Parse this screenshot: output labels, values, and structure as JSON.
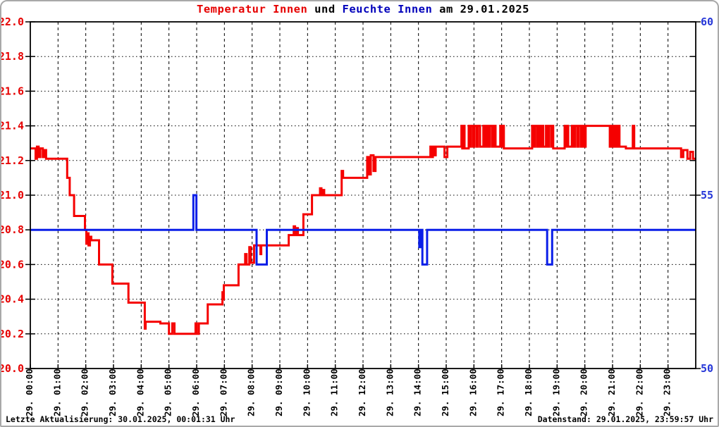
{
  "title": {
    "temperature": "Temperatur Innen",
    "connector": " und ",
    "humidity": "Feuchte Innen",
    "date_suffix": " am 29.01.2025"
  },
  "footer": {
    "last_update": "Letzte Aktualisierung: 30.01.2025, 00:01:31 Uhr",
    "data_state": "Datenstand: 29.01.2025, 23:59:57 Uhr"
  },
  "colors": {
    "temperature_line": "#f50000",
    "temperature_text": "#e60000",
    "humidity_line": "#0a1ee8",
    "humidity_text": "#0000bb",
    "humidity_axis_text": "#2637d8",
    "grid": "#000000",
    "frame": "#000000",
    "window_border": "#a9a9a9",
    "background": "#ffffff"
  },
  "chart_data": {
    "type": "line",
    "title": "Temperatur Innen und Feuchte Innen am 29.01.2025",
    "grid": true,
    "legend_position": "none",
    "x_axis": {
      "range": [
        0,
        24
      ],
      "tick_labels": [
        "29. 00:00",
        "29. 01:00",
        "29. 02:00",
        "29. 03:00",
        "29. 04:00",
        "29. 05:00",
        "29. 06:00",
        "29. 07:00",
        "29. 08:00",
        "29. 09:00",
        "29. 10:00",
        "29. 11:00",
        "29. 12:00",
        "29. 13:00",
        "29. 14:00",
        "29. 15:00",
        "29. 16:00",
        "29. 17:00",
        "29. 18:00",
        "29. 19:00",
        "29. 20:00",
        "29. 21:00",
        "29. 22:00",
        "29. 23:00"
      ]
    },
    "y_left": {
      "name": "Temperatur Innen",
      "unit": "°C",
      "range": [
        20.0,
        22.0
      ],
      "tick_step": 0.2,
      "tick_labels": [
        "22.0",
        "21.8",
        "21.6",
        "21.4",
        "21.2",
        "21.0",
        "20.8",
        "20.6",
        "20.4",
        "20.2",
        "20.0"
      ]
    },
    "y_right": {
      "name": "Feuchte Innen",
      "unit": "%",
      "range": [
        50,
        60
      ],
      "minor_tick_step": 1,
      "labeled_ticks": [
        60,
        55,
        50
      ],
      "tick_labels": [
        "60",
        "55",
        "50"
      ]
    },
    "series": [
      {
        "name": "Temperatur Innen",
        "axis": "left",
        "color_key": "temperature_line",
        "points": [
          [
            0,
            21.27
          ],
          [
            0.19,
            21.27
          ],
          [
            0.19,
            21.21
          ],
          [
            0.24,
            21.21
          ],
          [
            0.24,
            21.28
          ],
          [
            0.3,
            21.28
          ],
          [
            0.3,
            21.22
          ],
          [
            0.36,
            21.22
          ],
          [
            0.36,
            21.27
          ],
          [
            0.45,
            21.27
          ],
          [
            0.45,
            21.22
          ],
          [
            0.52,
            21.22
          ],
          [
            0.52,
            21.26
          ],
          [
            0.57,
            21.26
          ],
          [
            0.57,
            21.21
          ],
          [
            1.33,
            21.21
          ],
          [
            1.33,
            21.1
          ],
          [
            1.42,
            21.1
          ],
          [
            1.42,
            21.0
          ],
          [
            1.58,
            21.0
          ],
          [
            1.58,
            20.88
          ],
          [
            1.97,
            20.88
          ],
          [
            1.97,
            20.8
          ],
          [
            2.02,
            20.8
          ],
          [
            2.02,
            20.72
          ],
          [
            2.06,
            20.72
          ],
          [
            2.06,
            20.78
          ],
          [
            2.1,
            20.78
          ],
          [
            2.1,
            20.71
          ],
          [
            2.15,
            20.71
          ],
          [
            2.15,
            20.76
          ],
          [
            2.2,
            20.76
          ],
          [
            2.2,
            20.74
          ],
          [
            2.48,
            20.74
          ],
          [
            2.48,
            20.6
          ],
          [
            2.96,
            20.6
          ],
          [
            2.96,
            20.49
          ],
          [
            3.54,
            20.49
          ],
          [
            3.54,
            20.38
          ],
          [
            4.13,
            20.38
          ],
          [
            4.13,
            20.23
          ],
          [
            4.16,
            20.23
          ],
          [
            4.16,
            20.27
          ],
          [
            4.69,
            20.27
          ],
          [
            4.69,
            20.26
          ],
          [
            5.0,
            20.26
          ],
          [
            5.0,
            20.2
          ],
          [
            5.12,
            20.2
          ],
          [
            5.12,
            20.26
          ],
          [
            5.2,
            20.26
          ],
          [
            5.2,
            20.2
          ],
          [
            5.96,
            20.2
          ],
          [
            5.96,
            20.26
          ],
          [
            6.0,
            20.26
          ],
          [
            6.0,
            20.2
          ],
          [
            6.08,
            20.2
          ],
          [
            6.08,
            20.26
          ],
          [
            6.4,
            20.26
          ],
          [
            6.4,
            20.37
          ],
          [
            6.93,
            20.37
          ],
          [
            6.93,
            20.44
          ],
          [
            6.96,
            20.44
          ],
          [
            6.96,
            20.4
          ],
          [
            6.98,
            20.4
          ],
          [
            6.98,
            20.48
          ],
          [
            7.51,
            20.48
          ],
          [
            7.51,
            20.6
          ],
          [
            7.75,
            20.6
          ],
          [
            7.75,
            20.66
          ],
          [
            7.8,
            20.66
          ],
          [
            7.8,
            20.6
          ],
          [
            7.9,
            20.6
          ],
          [
            7.9,
            20.7
          ],
          [
            7.95,
            20.7
          ],
          [
            7.95,
            20.61
          ],
          [
            8.07,
            20.61
          ],
          [
            8.07,
            20.71
          ],
          [
            8.3,
            20.71
          ],
          [
            8.3,
            20.66
          ],
          [
            8.33,
            20.66
          ],
          [
            8.33,
            20.71
          ],
          [
            9.32,
            20.71
          ],
          [
            9.32,
            20.77
          ],
          [
            9.5,
            20.77
          ],
          [
            9.5,
            20.82
          ],
          [
            9.55,
            20.82
          ],
          [
            9.55,
            20.77
          ],
          [
            9.6,
            20.77
          ],
          [
            9.6,
            20.81
          ],
          [
            9.65,
            20.81
          ],
          [
            9.65,
            20.77
          ],
          [
            9.85,
            20.77
          ],
          [
            9.85,
            20.89
          ],
          [
            10.16,
            20.89
          ],
          [
            10.16,
            21.0
          ],
          [
            10.45,
            21.0
          ],
          [
            10.45,
            21.04
          ],
          [
            10.5,
            21.04
          ],
          [
            10.5,
            21.0
          ],
          [
            10.55,
            21.0
          ],
          [
            10.55,
            21.03
          ],
          [
            10.6,
            21.03
          ],
          [
            10.6,
            21.0
          ],
          [
            11.23,
            21.0
          ],
          [
            11.23,
            21.14
          ],
          [
            11.28,
            21.14
          ],
          [
            11.28,
            21.1
          ],
          [
            12.15,
            21.1
          ],
          [
            12.15,
            21.22
          ],
          [
            12.22,
            21.22
          ],
          [
            12.22,
            21.12
          ],
          [
            12.28,
            21.12
          ],
          [
            12.28,
            21.23
          ],
          [
            12.38,
            21.23
          ],
          [
            12.38,
            21.14
          ],
          [
            12.45,
            21.14
          ],
          [
            12.45,
            21.22
          ],
          [
            14.43,
            21.22
          ],
          [
            14.43,
            21.28
          ],
          [
            14.48,
            21.28
          ],
          [
            14.48,
            21.22
          ],
          [
            14.52,
            21.22
          ],
          [
            14.52,
            21.28
          ],
          [
            14.58,
            21.28
          ],
          [
            14.58,
            21.23
          ],
          [
            14.62,
            21.23
          ],
          [
            14.62,
            21.28
          ],
          [
            14.94,
            21.28
          ],
          [
            14.94,
            21.22
          ],
          [
            15.04,
            21.22
          ],
          [
            15.04,
            21.28
          ],
          [
            15.55,
            21.28
          ],
          [
            15.55,
            21.4
          ],
          [
            15.58,
            21.4
          ],
          [
            15.58,
            21.27
          ],
          [
            15.61,
            21.27
          ],
          [
            15.61,
            21.4
          ],
          [
            15.66,
            21.4
          ],
          [
            15.66,
            21.27
          ],
          [
            15.7,
            21.27
          ],
          [
            15.81,
            21.27
          ],
          [
            15.81,
            21.4
          ],
          [
            15.86,
            21.4
          ],
          [
            15.86,
            21.28
          ],
          [
            15.9,
            21.28
          ],
          [
            15.9,
            21.4
          ],
          [
            15.98,
            21.4
          ],
          [
            15.98,
            21.28
          ],
          [
            16.02,
            21.28
          ],
          [
            16.02,
            21.4
          ],
          [
            16.1,
            21.4
          ],
          [
            16.1,
            21.28
          ],
          [
            16.14,
            21.28
          ],
          [
            16.14,
            21.4
          ],
          [
            16.22,
            21.4
          ],
          [
            16.22,
            21.28
          ],
          [
            16.27,
            21.28
          ],
          [
            16.34,
            21.28
          ],
          [
            16.34,
            21.4
          ],
          [
            16.4,
            21.4
          ],
          [
            16.4,
            21.28
          ],
          [
            16.45,
            21.28
          ],
          [
            16.45,
            21.4
          ],
          [
            16.52,
            21.4
          ],
          [
            16.52,
            21.28
          ],
          [
            16.58,
            21.28
          ],
          [
            16.58,
            21.4
          ],
          [
            16.66,
            21.4
          ],
          [
            16.66,
            21.28
          ],
          [
            16.72,
            21.28
          ],
          [
            16.72,
            21.4
          ],
          [
            16.78,
            21.4
          ],
          [
            16.78,
            21.28
          ],
          [
            16.83,
            21.28
          ],
          [
            16.95,
            21.28
          ],
          [
            16.95,
            21.4
          ],
          [
            17.0,
            21.4
          ],
          [
            17.0,
            21.28
          ],
          [
            17.04,
            21.28
          ],
          [
            17.04,
            21.4
          ],
          [
            17.08,
            21.4
          ],
          [
            17.08,
            21.27
          ],
          [
            18.1,
            21.27
          ],
          [
            18.1,
            21.4
          ],
          [
            18.16,
            21.4
          ],
          [
            18.16,
            21.28
          ],
          [
            18.2,
            21.28
          ],
          [
            18.2,
            21.4
          ],
          [
            18.28,
            21.4
          ],
          [
            18.28,
            21.28
          ],
          [
            18.33,
            21.28
          ],
          [
            18.33,
            21.4
          ],
          [
            18.4,
            21.4
          ],
          [
            18.4,
            21.28
          ],
          [
            18.45,
            21.28
          ],
          [
            18.45,
            21.4
          ],
          [
            18.5,
            21.4
          ],
          [
            18.5,
            21.28
          ],
          [
            18.6,
            21.28
          ],
          [
            18.6,
            21.4
          ],
          [
            18.66,
            21.4
          ],
          [
            18.66,
            21.28
          ],
          [
            18.7,
            21.28
          ],
          [
            18.7,
            21.4
          ],
          [
            18.78,
            21.4
          ],
          [
            18.78,
            21.28
          ],
          [
            18.82,
            21.28
          ],
          [
            18.82,
            21.4
          ],
          [
            18.86,
            21.4
          ],
          [
            18.86,
            21.27
          ],
          [
            19.27,
            21.27
          ],
          [
            19.27,
            21.4
          ],
          [
            19.32,
            21.4
          ],
          [
            19.32,
            21.28
          ],
          [
            19.36,
            21.28
          ],
          [
            19.36,
            21.4
          ],
          [
            19.4,
            21.4
          ],
          [
            19.4,
            21.28
          ],
          [
            19.53,
            21.28
          ],
          [
            19.53,
            21.4
          ],
          [
            19.6,
            21.4
          ],
          [
            19.6,
            21.28
          ],
          [
            19.64,
            21.28
          ],
          [
            19.64,
            21.4
          ],
          [
            19.72,
            21.4
          ],
          [
            19.72,
            21.28
          ],
          [
            19.78,
            21.28
          ],
          [
            19.78,
            21.4
          ],
          [
            19.86,
            21.4
          ],
          [
            19.86,
            21.28
          ],
          [
            19.9,
            21.28
          ],
          [
            19.9,
            21.4
          ],
          [
            19.96,
            21.4
          ],
          [
            19.96,
            21.28
          ],
          [
            20.03,
            21.28
          ],
          [
            20.03,
            21.4
          ],
          [
            20.9,
            21.4
          ],
          [
            20.9,
            21.28
          ],
          [
            20.95,
            21.28
          ],
          [
            20.95,
            21.4
          ],
          [
            21.0,
            21.4
          ],
          [
            21.0,
            21.28
          ],
          [
            21.05,
            21.28
          ],
          [
            21.05,
            21.4
          ],
          [
            21.12,
            21.4
          ],
          [
            21.12,
            21.28
          ],
          [
            21.18,
            21.28
          ],
          [
            21.18,
            21.4
          ],
          [
            21.25,
            21.4
          ],
          [
            21.25,
            21.28
          ],
          [
            21.48,
            21.28
          ],
          [
            21.48,
            21.27
          ],
          [
            21.73,
            21.27
          ],
          [
            21.73,
            21.4
          ],
          [
            21.78,
            21.4
          ],
          [
            21.78,
            21.27
          ],
          [
            23.47,
            21.27
          ],
          [
            23.47,
            21.22
          ],
          [
            23.55,
            21.22
          ],
          [
            23.55,
            21.26
          ],
          [
            23.7,
            21.26
          ],
          [
            23.7,
            21.21
          ],
          [
            23.8,
            21.21
          ],
          [
            23.8,
            21.25
          ],
          [
            23.9,
            21.25
          ],
          [
            23.9,
            21.21
          ],
          [
            24,
            21.21
          ]
        ]
      },
      {
        "name": "Feuchte Innen",
        "axis": "right",
        "color_key": "humidity_line",
        "points": [
          [
            0,
            54
          ],
          [
            5.88,
            54
          ],
          [
            5.88,
            55
          ],
          [
            5.99,
            55
          ],
          [
            5.99,
            54
          ],
          [
            8.16,
            54
          ],
          [
            8.16,
            53
          ],
          [
            8.53,
            53
          ],
          [
            8.53,
            54
          ],
          [
            14.03,
            54
          ],
          [
            14.03,
            53.5
          ],
          [
            14.09,
            53.5
          ],
          [
            14.09,
            54
          ],
          [
            14.14,
            54
          ],
          [
            14.14,
            53
          ],
          [
            14.31,
            53
          ],
          [
            14.31,
            54
          ],
          [
            18.64,
            54
          ],
          [
            18.64,
            53
          ],
          [
            18.82,
            53
          ],
          [
            18.82,
            54
          ],
          [
            24,
            54
          ]
        ]
      }
    ]
  }
}
